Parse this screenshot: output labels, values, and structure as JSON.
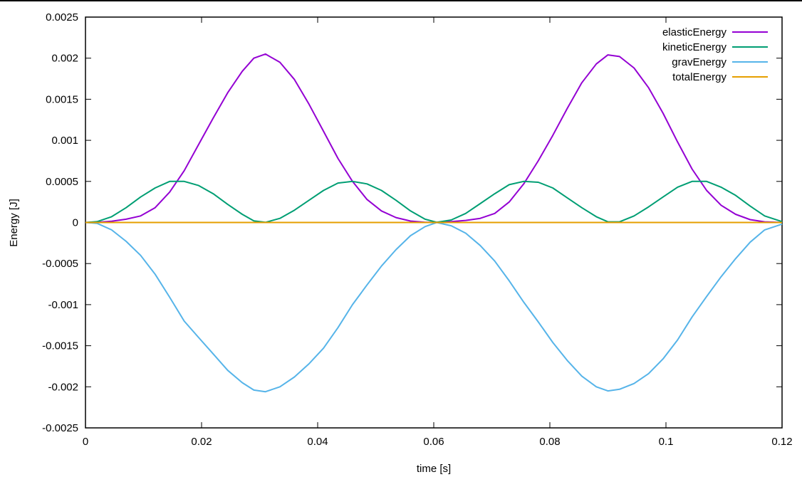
{
  "chart_data": {
    "type": "line",
    "xlabel": "time [s]",
    "ylabel": "Energy [J]",
    "xlim": [
      0,
      0.12
    ],
    "ylim": [
      -0.0025,
      0.0025
    ],
    "x_ticks": [
      "0",
      "0.02",
      "0.04",
      "0.06",
      "0.08",
      "0.1",
      "0.12"
    ],
    "y_ticks": [
      "-0.0025",
      "-0.002",
      "-0.0015",
      "-0.001",
      "-0.0005",
      "0",
      "0.0005",
      "0.001",
      "0.0015",
      "0.002",
      "0.0025"
    ],
    "legend_position": "top-right",
    "grid": false,
    "x": [
      0.0,
      0.002,
      0.0045,
      0.007,
      0.0095,
      0.012,
      0.0145,
      0.017,
      0.0195,
      0.022,
      0.0245,
      0.027,
      0.029,
      0.031,
      0.0335,
      0.036,
      0.0385,
      0.041,
      0.0435,
      0.046,
      0.0485,
      0.051,
      0.0535,
      0.056,
      0.0585,
      0.0605,
      0.063,
      0.0655,
      0.068,
      0.0705,
      0.073,
      0.0755,
      0.078,
      0.0805,
      0.083,
      0.0855,
      0.088,
      0.09,
      0.092,
      0.0945,
      0.097,
      0.0995,
      0.102,
      0.1045,
      0.107,
      0.1095,
      0.112,
      0.1145,
      0.117,
      0.12
    ],
    "series": [
      {
        "name": "elasticEnergy",
        "color": "#9400d3",
        "values": [
          0,
          2e-06,
          1.5e-05,
          4e-05,
          8e-05,
          0.00018,
          0.00037,
          0.00063,
          0.00095,
          0.00127,
          0.00158,
          0.00184,
          0.002,
          0.00205,
          0.00195,
          0.00174,
          0.00144,
          0.00111,
          0.00078,
          0.0005,
          0.00028,
          0.00014,
          6e-05,
          1.7e-05,
          3e-06,
          3e-06,
          1e-05,
          2.5e-05,
          5e-05,
          0.00011,
          0.00025,
          0.00047,
          0.00075,
          0.00106,
          0.00139,
          0.0017,
          0.00193,
          0.00204,
          0.00202,
          0.00188,
          0.00164,
          0.00133,
          0.00098,
          0.00065,
          0.00039,
          0.00021,
          0.0001,
          3.5e-05,
          8e-06,
          0
        ]
      },
      {
        "name": "kineticEnergy",
        "color": "#009e73",
        "values": [
          0,
          1e-05,
          7e-05,
          0.00018,
          0.00031,
          0.00042,
          0.0005,
          0.0005,
          0.00045,
          0.00035,
          0.00022,
          0.0001,
          2e-05,
          2e-06,
          5e-05,
          0.00015,
          0.00027,
          0.00039,
          0.00048,
          0.0005,
          0.00047,
          0.00039,
          0.00027,
          0.00014,
          4e-05,
          3e-06,
          3e-05,
          0.00011,
          0.00023,
          0.00035,
          0.00046,
          0.0005,
          0.00049,
          0.00042,
          0.0003,
          0.00018,
          7e-05,
          8e-06,
          8e-06,
          8e-05,
          0.00019,
          0.00031,
          0.00043,
          0.0005,
          0.0005,
          0.00043,
          0.00033,
          0.0002,
          8e-05,
          1e-05
        ]
      },
      {
        "name": "gravEnergy",
        "color": "#56b4e9",
        "values": [
          0,
          -1e-05,
          -9e-05,
          -0.00023,
          -0.0004,
          -0.00063,
          -0.00091,
          -0.0012,
          -0.0014,
          -0.0016,
          -0.0018,
          -0.00195,
          -0.00204,
          -0.00206,
          -0.002,
          -0.00188,
          -0.00172,
          -0.00153,
          -0.00128,
          -0.001,
          -0.00076,
          -0.00053,
          -0.00033,
          -0.00016,
          -5e-05,
          0,
          -4e-05,
          -0.00013,
          -0.00028,
          -0.00047,
          -0.00071,
          -0.00097,
          -0.00121,
          -0.00146,
          -0.00168,
          -0.00187,
          -0.002,
          -0.00205,
          -0.00203,
          -0.00196,
          -0.00184,
          -0.00166,
          -0.00143,
          -0.00115,
          -0.0009,
          -0.00066,
          -0.00044,
          -0.00024,
          -9e-05,
          -2e-05
        ]
      },
      {
        "name": "totalEnergy",
        "color": "#e69f00",
        "values": [
          0,
          0,
          0,
          0,
          0,
          0,
          0,
          0,
          0,
          0,
          0,
          0,
          0,
          0,
          0,
          0,
          0,
          0,
          0,
          0,
          0,
          0,
          0,
          0,
          0,
          0,
          0,
          0,
          0,
          0,
          0,
          0,
          0,
          0,
          0,
          0,
          0,
          0,
          0,
          0,
          0,
          0,
          0,
          0,
          0,
          0,
          0,
          0,
          0,
          0
        ]
      }
    ]
  }
}
